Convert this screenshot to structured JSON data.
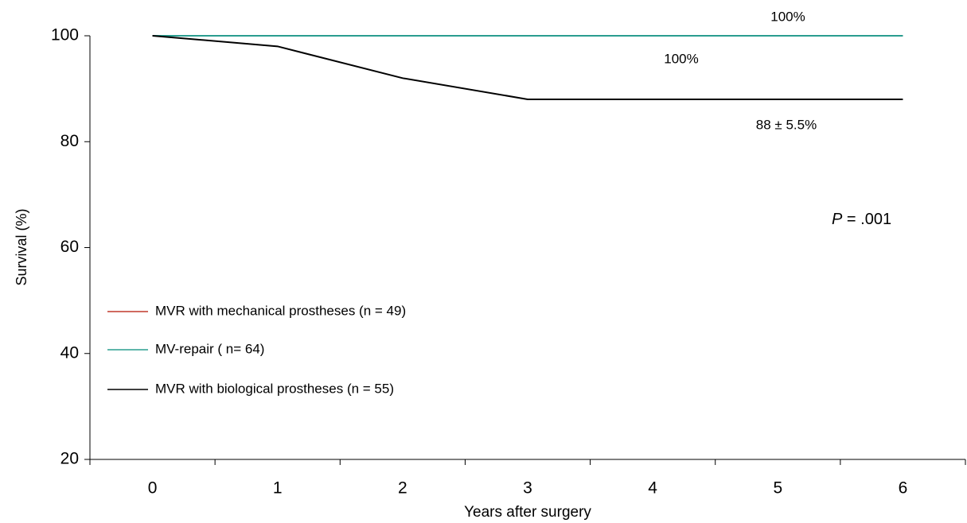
{
  "chart_data": {
    "type": "line",
    "y_label": "Survival (%)",
    "x_label": "Years after surgery",
    "xlim": [
      -0.5,
      6.5
    ],
    "xticks": [
      0,
      1,
      2,
      3,
      4,
      5,
      6
    ],
    "ylim": [
      20,
      100
    ],
    "yticks": [
      20,
      40,
      60,
      80,
      100
    ],
    "legend": "left",
    "series": [
      {
        "name": "MVR with mechanical prostheses (n = 49)",
        "color": "#c0392b",
        "x": [
          0,
          6
        ],
        "values": [
          100,
          100
        ]
      },
      {
        "name": "MV-repair ( n= 64)",
        "color": "#2a9d8f",
        "x": [
          0,
          6
        ],
        "values": [
          100,
          100
        ]
      },
      {
        "name": "MVR with biological prostheses (n = 55)",
        "color": "#000000",
        "x": [
          0,
          1,
          2,
          3,
          6
        ],
        "values": [
          100,
          98,
          92,
          88,
          88
        ]
      }
    ],
    "annotations": [
      "100%",
      "100%",
      "88 ± 5.5%"
    ],
    "p_value": {
      "symbol": "P",
      "text": "= .001"
    }
  }
}
